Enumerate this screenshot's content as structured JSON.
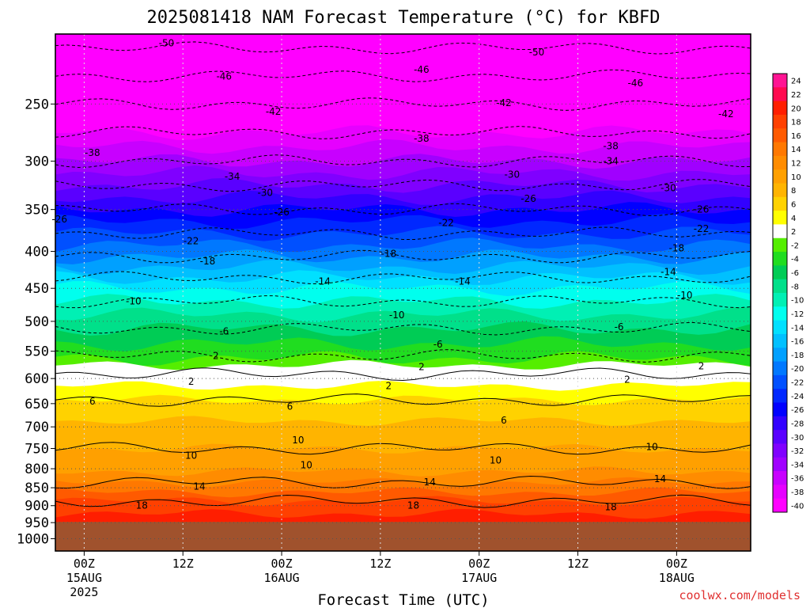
{
  "chart_data": {
    "type": "heatmap",
    "title": "2025081418 NAM Forecast Temperature (°C) for KBFD",
    "xlabel": "Forecast Time (UTC)",
    "ylabel": "",
    "credit": "coolwx.com/models",
    "x_range_hours": [
      -3.5,
      81
    ],
    "x_ticks": [
      {
        "hour": 0,
        "lines": [
          "00Z",
          "15AUG",
          "2025"
        ]
      },
      {
        "hour": 12,
        "lines": [
          "12Z"
        ]
      },
      {
        "hour": 24,
        "lines": [
          "00Z",
          "16AUG"
        ]
      },
      {
        "hour": 36,
        "lines": [
          "12Z"
        ]
      },
      {
        "hour": 48,
        "lines": [
          "00Z",
          "17AUG"
        ]
      },
      {
        "hour": 60,
        "lines": [
          "12Z"
        ]
      },
      {
        "hour": 72,
        "lines": [
          "00Z",
          "18AUG"
        ]
      }
    ],
    "y_scale": "log-pressure",
    "y_range_hpa": [
      1040,
      200
    ],
    "y_ticks": [
      "250",
      "300",
      "350",
      "400",
      "450",
      "500",
      "550",
      "600",
      "650",
      "700",
      "750",
      "800",
      "850",
      "900",
      "950",
      "1000"
    ],
    "surface_pressure_hpa": 948,
    "colorbar": {
      "labels": [
        "24",
        "22",
        "20",
        "18",
        "16",
        "14",
        "12",
        "10",
        "8",
        "6",
        "4",
        "2",
        "-2",
        "-4",
        "-6",
        "-8",
        "-10",
        "-12",
        "-14",
        "-16",
        "-18",
        "-20",
        "-22",
        "-24",
        "-26",
        "-28",
        "-30",
        "-32",
        "-34",
        "-36",
        "-38",
        "-40"
      ],
      "colors": [
        "#ff1493",
        "#ff0a50",
        "#ff1e00",
        "#ff4000",
        "#ff5a00",
        "#ff7800",
        "#ff8c00",
        "#ffa000",
        "#ffb400",
        "#ffd200",
        "#ffff00",
        "#ffffff",
        "#55ee00",
        "#20dd20",
        "#00cc55",
        "#00e08a",
        "#00f0b4",
        "#00ffee",
        "#00e0ff",
        "#00c0ff",
        "#00a0ff",
        "#0078ff",
        "#0050ff",
        "#0028ff",
        "#0000ff",
        "#3200ff",
        "#5a00ff",
        "#8000ff",
        "#a000ff",
        "#c800ff",
        "#e600ff",
        "#ff00ff"
      ]
    },
    "profile": [
      {
        "p": 948,
        "t": 21
      },
      {
        "p": 900,
        "t": 19
      },
      {
        "p": 850,
        "t": 15
      },
      {
        "p": 800,
        "t": 11.5
      },
      {
        "p": 750,
        "t": 10
      },
      {
        "p": 700,
        "t": 8.5
      },
      {
        "p": 650,
        "t": 6.5
      },
      {
        "p": 600,
        "t": 3
      },
      {
        "p": 575,
        "t": 0
      },
      {
        "p": 550,
        "t": -3
      },
      {
        "p": 500,
        "t": -7
      },
      {
        "p": 450,
        "t": -12
      },
      {
        "p": 400,
        "t": -19
      },
      {
        "p": 350,
        "t": -26
      },
      {
        "p": 300,
        "t": -34
      },
      {
        "p": 250,
        "t": -42
      },
      {
        "p": 200,
        "t": -52
      }
    ],
    "contour_labels": [
      {
        "text": "-50",
        "hour": 10,
        "p": 206
      },
      {
        "text": "-50",
        "hour": 55,
        "p": 212
      },
      {
        "text": "-46",
        "hour": 17,
        "p": 229
      },
      {
        "text": "-46",
        "hour": 41,
        "p": 224
      },
      {
        "text": "-46",
        "hour": 67,
        "p": 234
      },
      {
        "text": "-42",
        "hour": 23,
        "p": 256
      },
      {
        "text": "-42",
        "hour": 51,
        "p": 249
      },
      {
        "text": "-42",
        "hour": 78,
        "p": 258
      },
      {
        "text": "-38",
        "hour": 1,
        "p": 292
      },
      {
        "text": "-38",
        "hour": 41,
        "p": 279
      },
      {
        "text": "-38",
        "hour": 64,
        "p": 286
      },
      {
        "text": "-34",
        "hour": 18,
        "p": 315
      },
      {
        "text": "-34",
        "hour": 64,
        "p": 300
      },
      {
        "text": "-30",
        "hour": 22,
        "p": 332
      },
      {
        "text": "-30",
        "hour": 52,
        "p": 313
      },
      {
        "text": "-30",
        "hour": 71,
        "p": 327
      },
      {
        "text": "-26",
        "hour": -3,
        "p": 361
      },
      {
        "text": "-26",
        "hour": 24,
        "p": 353
      },
      {
        "text": "-26",
        "hour": 54,
        "p": 338
      },
      {
        "text": "-26",
        "hour": 75,
        "p": 350
      },
      {
        "text": "-22",
        "hour": 13,
        "p": 387
      },
      {
        "text": "-22",
        "hour": 44,
        "p": 365
      },
      {
        "text": "-22",
        "hour": 75,
        "p": 372
      },
      {
        "text": "-18",
        "hour": 15,
        "p": 413
      },
      {
        "text": "-18",
        "hour": 37,
        "p": 403
      },
      {
        "text": "-18",
        "hour": 72,
        "p": 396
      },
      {
        "text": "-14",
        "hour": 29,
        "p": 440
      },
      {
        "text": "-14",
        "hour": 46,
        "p": 440
      },
      {
        "text": "-14",
        "hour": 71,
        "p": 427
      },
      {
        "text": "-10",
        "hour": 6,
        "p": 469
      },
      {
        "text": "-10",
        "hour": 38,
        "p": 490
      },
      {
        "text": "-10",
        "hour": 73,
        "p": 460
      },
      {
        "text": "-6",
        "hour": 17,
        "p": 516
      },
      {
        "text": "-6",
        "hour": 43,
        "p": 538
      },
      {
        "text": "-6",
        "hour": 65,
        "p": 509
      },
      {
        "text": "2",
        "hour": 16,
        "p": 558
      },
      {
        "text": "2",
        "hour": 13,
        "p": 606
      },
      {
        "text": "2",
        "hour": 41,
        "p": 578
      },
      {
        "text": "2",
        "hour": 37,
        "p": 614
      },
      {
        "text": "2",
        "hour": 66,
        "p": 602
      },
      {
        "text": "2",
        "hour": 75,
        "p": 577
      },
      {
        "text": "6",
        "hour": 1,
        "p": 645
      },
      {
        "text": "6",
        "hour": 25,
        "p": 656
      },
      {
        "text": "6",
        "hour": 51,
        "p": 686
      },
      {
        "text": "10",
        "hour": 13,
        "p": 767
      },
      {
        "text": "10",
        "hour": 26,
        "p": 730
      },
      {
        "text": "10",
        "hour": 27,
        "p": 791
      },
      {
        "text": "10",
        "hour": 50,
        "p": 779
      },
      {
        "text": "10",
        "hour": 69,
        "p": 746
      },
      {
        "text": "14",
        "hour": 14,
        "p": 847
      },
      {
        "text": "14",
        "hour": 42,
        "p": 835
      },
      {
        "text": "14",
        "hour": 70,
        "p": 827
      },
      {
        "text": "18",
        "hour": 7,
        "p": 899
      },
      {
        "text": "18",
        "hour": 40,
        "p": 899
      },
      {
        "text": "18",
        "hour": 64,
        "p": 904
      }
    ]
  }
}
